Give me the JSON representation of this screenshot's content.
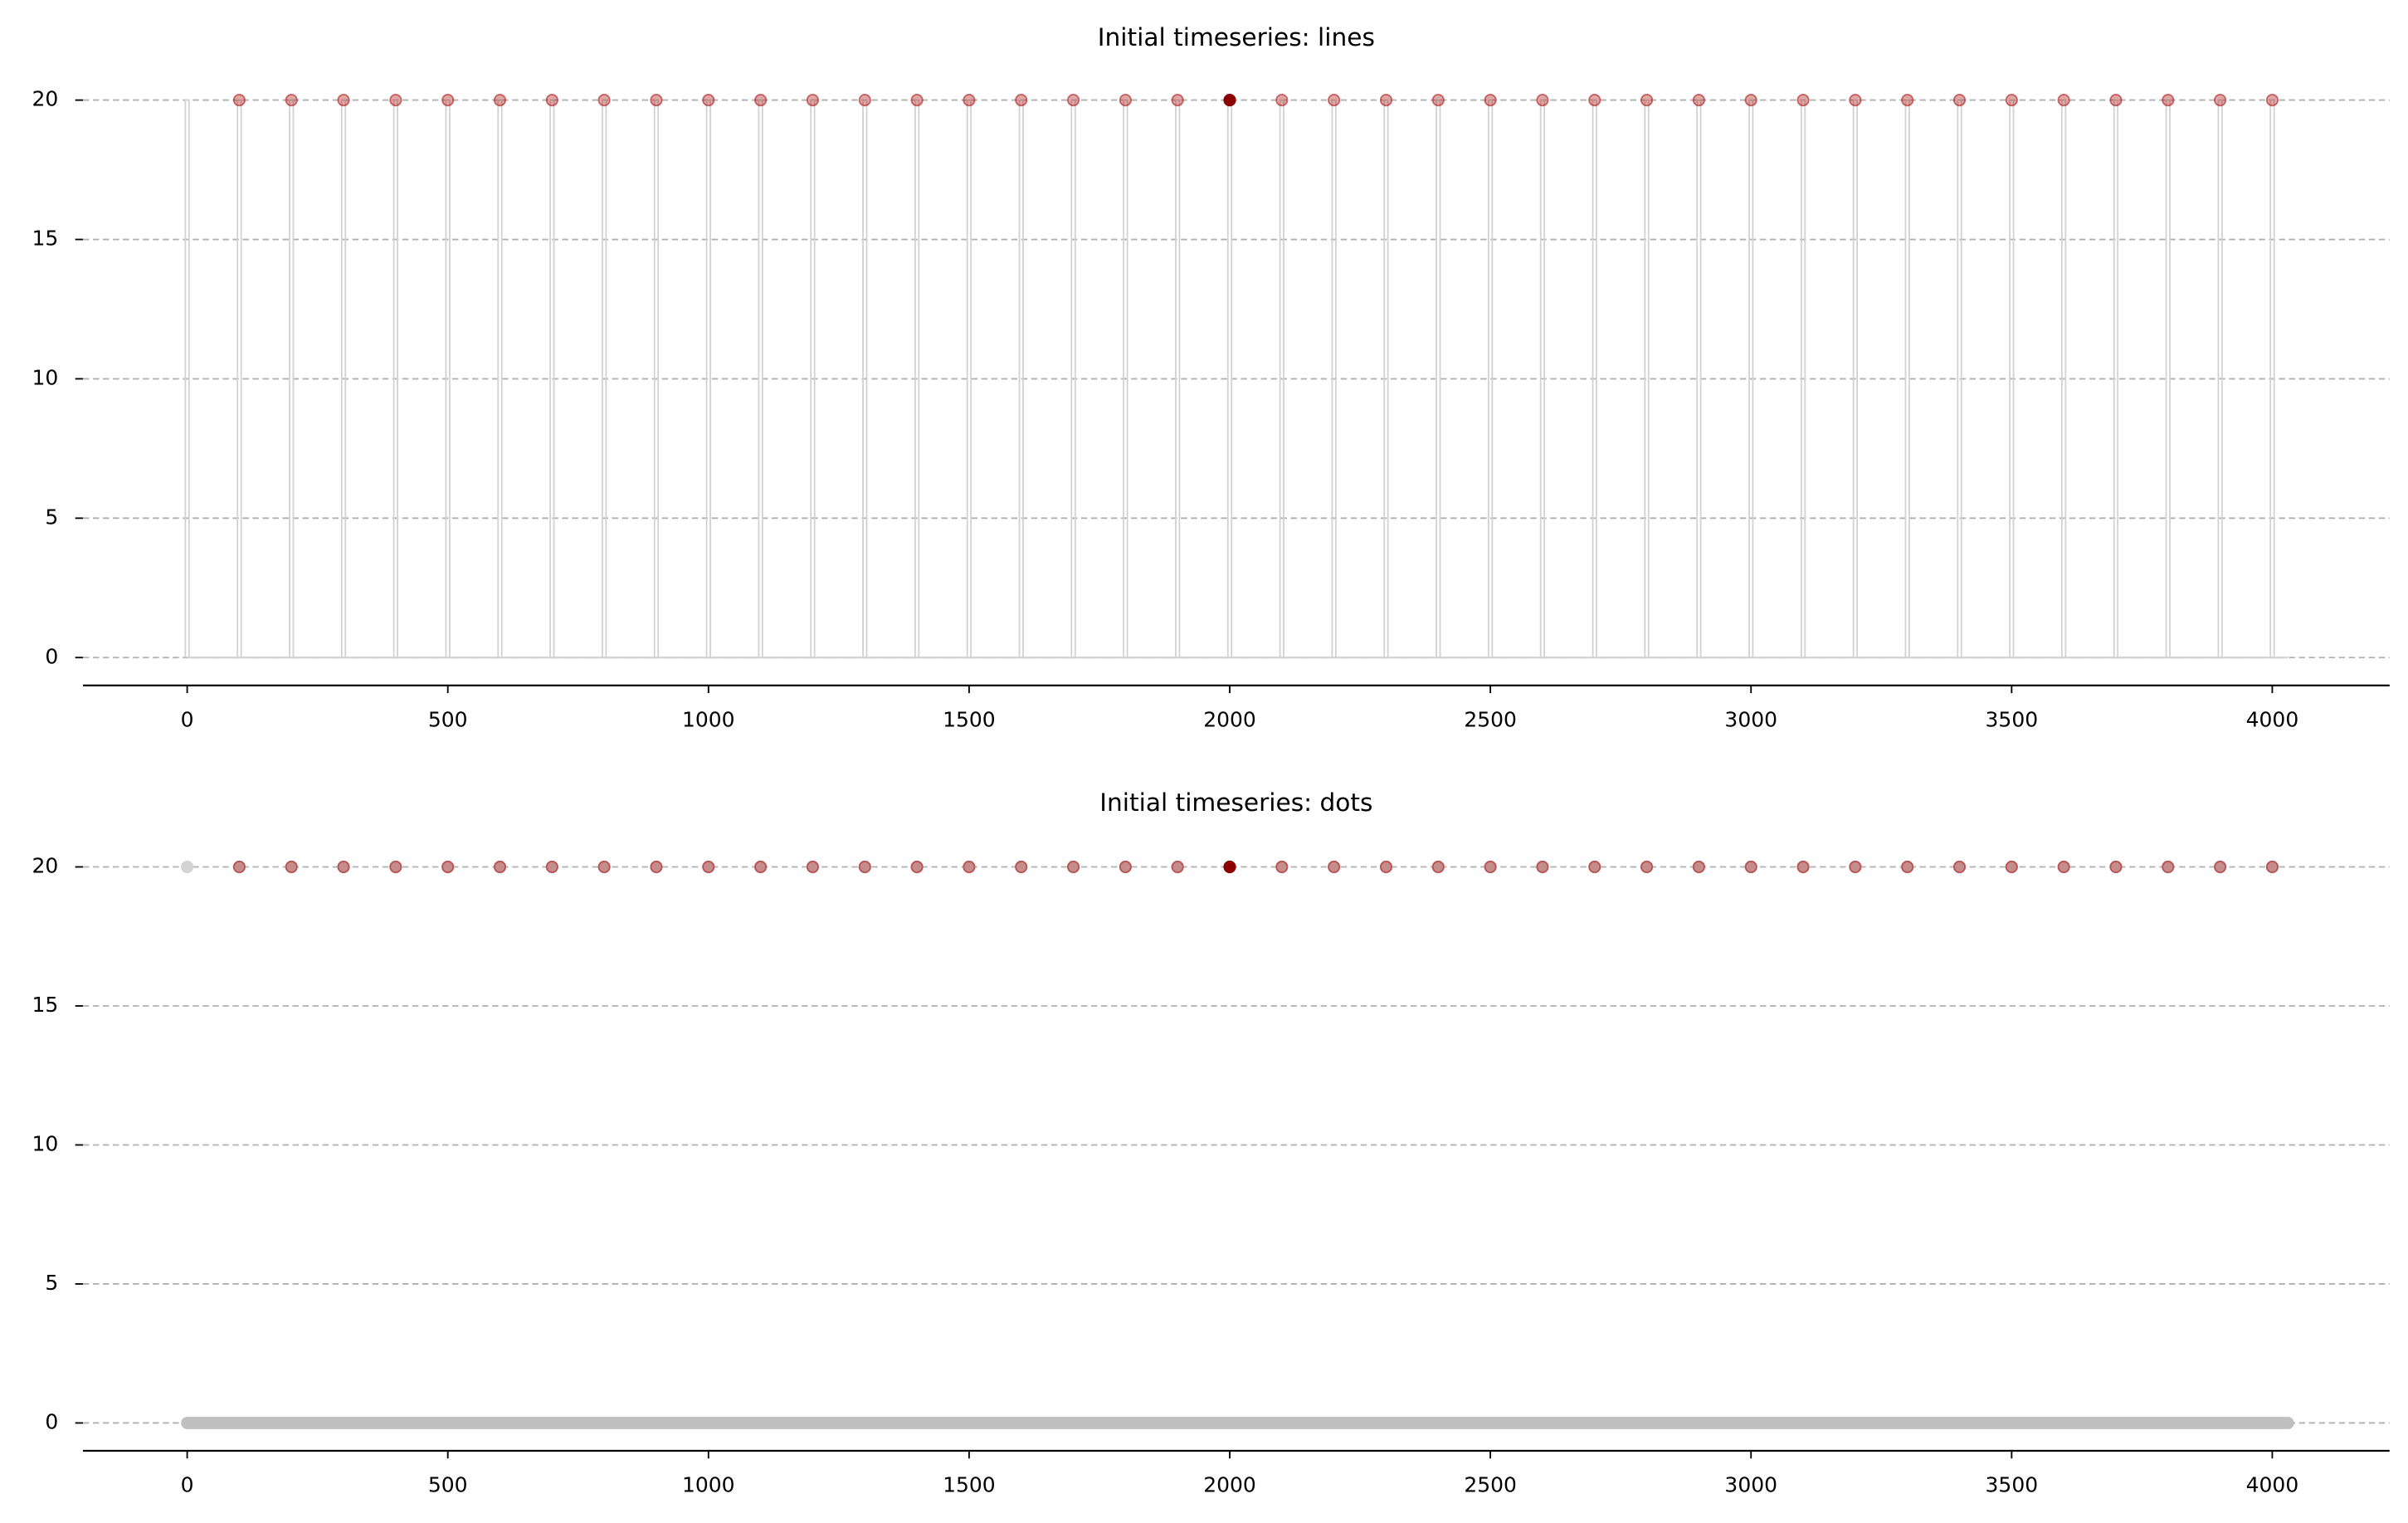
{
  "chart_data": [
    {
      "type": "line",
      "title": "Initial timeseries: lines",
      "xlim": [
        -200,
        4225
      ],
      "ylim": [
        -1,
        21
      ],
      "xticks": [
        0,
        500,
        1000,
        1500,
        2000,
        2500,
        3000,
        3500,
        4000
      ],
      "yticks": [
        0,
        5,
        10,
        15,
        20
      ],
      "grid": "y",
      "series": [
        {
          "kind": "line",
          "color": "#d3d3d3",
          "x": [
            0,
            4030
          ],
          "values": [
            0,
            0
          ]
        },
        {
          "kind": "stem",
          "color": "#d3d3d3",
          "x": [
            0,
            100,
            200,
            300,
            400,
            500,
            600,
            700,
            800,
            900,
            1000,
            1100,
            1200,
            1300,
            1400,
            1500,
            1600,
            1700,
            1800,
            1900,
            2000,
            2100,
            2200,
            2300,
            2400,
            2500,
            2600,
            2700,
            2800,
            2900,
            3000,
            3100,
            3200,
            3300,
            3400,
            3500,
            3600,
            3700,
            3800,
            3900,
            4000
          ],
          "values": [
            20,
            20,
            20,
            20,
            20,
            20,
            20,
            20,
            20,
            20,
            20,
            20,
            20,
            20,
            20,
            20,
            20,
            20,
            20,
            20,
            20,
            20,
            20,
            20,
            20,
            20,
            20,
            20,
            20,
            20,
            20,
            20,
            20,
            20,
            20,
            20,
            20,
            20,
            20,
            20,
            20
          ]
        },
        {
          "kind": "dot",
          "color": "#b22222",
          "alpha": 0.4,
          "x": [
            100,
            200,
            300,
            400,
            500,
            600,
            700,
            800,
            900,
            1000,
            1100,
            1200,
            1300,
            1400,
            1500,
            1600,
            1700,
            1800,
            1900,
            2100,
            2200,
            2300,
            2400,
            2500,
            2600,
            2700,
            2800,
            2900,
            3000,
            3100,
            3200,
            3300,
            3400,
            3500,
            3600,
            3700,
            3800,
            3900,
            4000
          ],
          "values": [
            20,
            20,
            20,
            20,
            20,
            20,
            20,
            20,
            20,
            20,
            20,
            20,
            20,
            20,
            20,
            20,
            20,
            20,
            20,
            20,
            20,
            20,
            20,
            20,
            20,
            20,
            20,
            20,
            20,
            20,
            20,
            20,
            20,
            20,
            20,
            20,
            20,
            20,
            20
          ]
        },
        {
          "kind": "dot",
          "color": "#8b0000",
          "alpha": 1,
          "x": [
            2000
          ],
          "values": [
            20
          ]
        }
      ]
    },
    {
      "type": "scatter",
      "title": "Initial timeseries: dots",
      "xlim": [
        -200,
        4225
      ],
      "ylim": [
        -1,
        21
      ],
      "xticks": [
        0,
        500,
        1000,
        1500,
        2000,
        2500,
        3000,
        3500,
        4000
      ],
      "yticks": [
        0,
        5,
        10,
        15,
        20
      ],
      "grid": "y",
      "series": [
        {
          "kind": "dotline",
          "color": "#c0c0c0",
          "x": [
            0,
            4030
          ],
          "values": [
            0,
            0
          ]
        },
        {
          "kind": "dot",
          "color": "#d3d3d3",
          "alpha": 1,
          "x": [
            0,
            100,
            200,
            300,
            400,
            500,
            600,
            700,
            800,
            900,
            1000,
            1100,
            1200,
            1300,
            1400,
            1500,
            1600,
            1700,
            1800,
            1900,
            2000,
            2100,
            2200,
            2300,
            2400,
            2500,
            2600,
            2700,
            2800,
            2900,
            3000,
            3100,
            3200,
            3300,
            3400,
            3500,
            3600,
            3700,
            3800,
            3900,
            4000
          ],
          "values": [
            20,
            20,
            20,
            20,
            20,
            20,
            20,
            20,
            20,
            20,
            20,
            20,
            20,
            20,
            20,
            20,
            20,
            20,
            20,
            20,
            20,
            20,
            20,
            20,
            20,
            20,
            20,
            20,
            20,
            20,
            20,
            20,
            20,
            20,
            20,
            20,
            20,
            20,
            20,
            20,
            20
          ]
        },
        {
          "kind": "dot",
          "color": "#b22222",
          "alpha": 0.4,
          "x": [
            100,
            200,
            300,
            400,
            500,
            600,
            700,
            800,
            900,
            1000,
            1100,
            1200,
            1300,
            1400,
            1500,
            1600,
            1700,
            1800,
            1900,
            2100,
            2200,
            2300,
            2400,
            2500,
            2600,
            2700,
            2800,
            2900,
            3000,
            3100,
            3200,
            3300,
            3400,
            3500,
            3600,
            3700,
            3800,
            3900,
            4000
          ],
          "values": [
            20,
            20,
            20,
            20,
            20,
            20,
            20,
            20,
            20,
            20,
            20,
            20,
            20,
            20,
            20,
            20,
            20,
            20,
            20,
            20,
            20,
            20,
            20,
            20,
            20,
            20,
            20,
            20,
            20,
            20,
            20,
            20,
            20,
            20,
            20,
            20,
            20,
            20,
            20
          ]
        },
        {
          "kind": "dot",
          "color": "#8b0000",
          "alpha": 1,
          "x": [
            2000
          ],
          "values": [
            20
          ]
        }
      ]
    }
  ]
}
